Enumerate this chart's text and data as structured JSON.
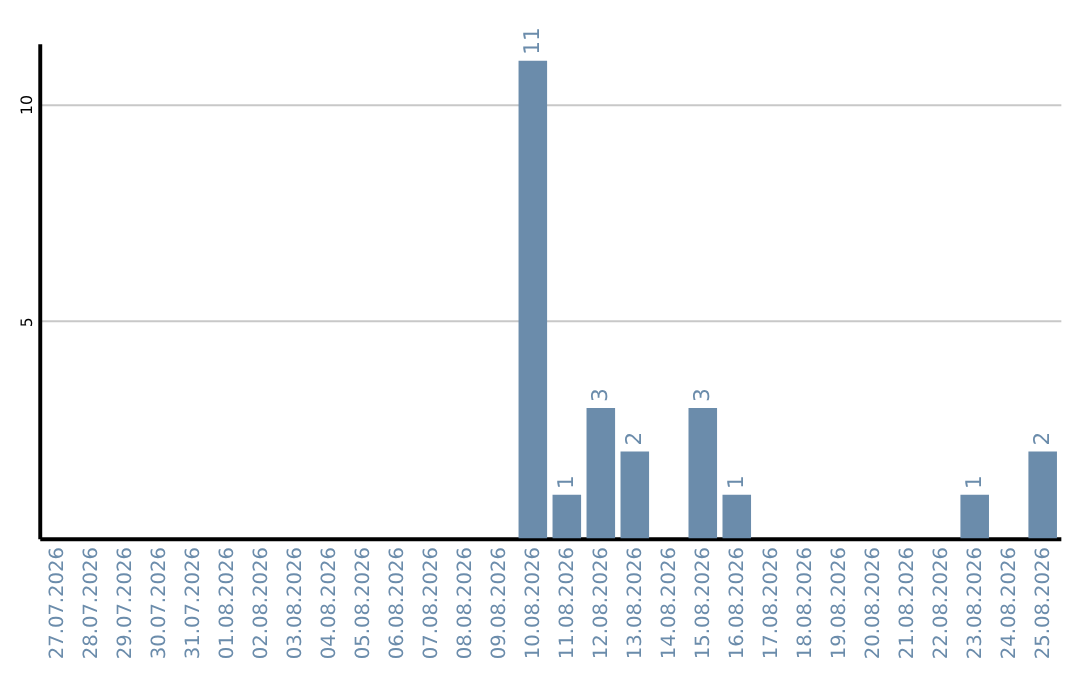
{
  "chart_data": {
    "type": "bar",
    "categories": [
      "27.07.2026",
      "28.07.2026",
      "29.07.2026",
      "30.07.2026",
      "31.07.2026",
      "01.08.2026",
      "02.08.2026",
      "03.08.2026",
      "04.08.2026",
      "05.08.2026",
      "06.08.2026",
      "07.08.2026",
      "08.08.2026",
      "09.08.2026",
      "10.08.2026",
      "11.08.2026",
      "12.08.2026",
      "13.08.2026",
      "14.08.2026",
      "15.08.2026",
      "16.08.2026",
      "17.08.2026",
      "18.08.2026",
      "19.08.2026",
      "20.08.2026",
      "21.08.2026",
      "22.08.2026",
      "23.08.2026",
      "24.08.2026",
      "25.08.2026"
    ],
    "values": [
      0,
      0,
      0,
      0,
      0,
      0,
      0,
      0,
      0,
      0,
      0,
      0,
      0,
      0,
      11,
      1,
      3,
      2,
      0,
      3,
      1,
      0,
      0,
      0,
      0,
      0,
      0,
      1,
      0,
      2
    ],
    "value_labels": [
      null,
      null,
      null,
      null,
      null,
      null,
      null,
      null,
      null,
      null,
      null,
      null,
      null,
      null,
      "11",
      "1",
      "3",
      "2",
      null,
      "3",
      "1",
      null,
      null,
      null,
      null,
      null,
      null,
      "1",
      null,
      "2"
    ],
    "color": "#6b8cab",
    "ylim": [
      0,
      11.4
    ],
    "yticks": [
      5,
      10
    ],
    "grid": "y"
  }
}
